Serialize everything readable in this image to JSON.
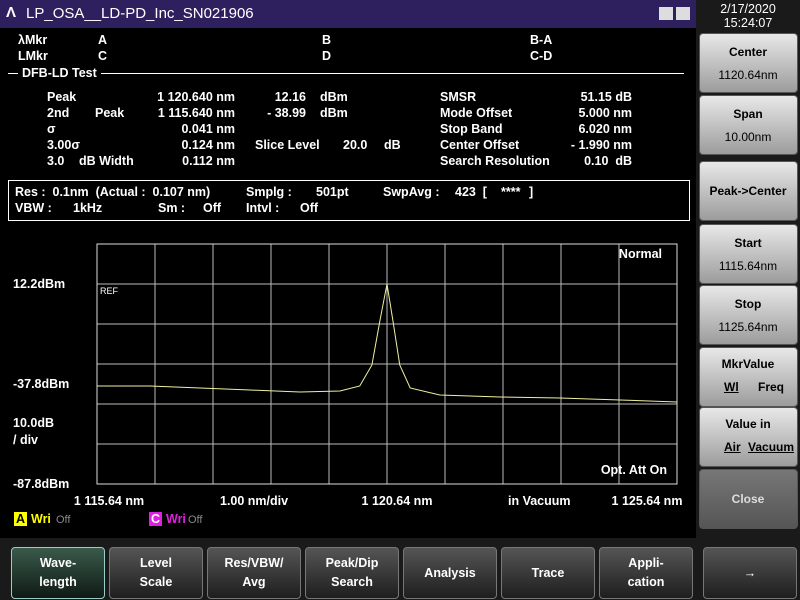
{
  "window": {
    "title": "LP_OSA__LD-PD_Inc_SN021906"
  },
  "clock": {
    "date": "2/17/2020",
    "time": "15:24:07"
  },
  "markers": {
    "rows": [
      [
        "λMkr",
        "A",
        "B",
        "B-A"
      ],
      [
        "LMkr",
        "C",
        "D",
        "C-D"
      ]
    ]
  },
  "test": {
    "title": "DFB-LD Test",
    "left": {
      "peak": [
        "Peak",
        "1 120.640 nm",
        "12.16",
        "dBm"
      ],
      "second": [
        "2nd",
        "Peak",
        "1 115.640 nm",
        "- 38.99",
        "dBm"
      ],
      "sigma": [
        "σ",
        "0.041 nm"
      ],
      "sigma3": [
        "3.00σ",
        "0.124 nm",
        "Slice Level",
        "20.0",
        "dB"
      ],
      "width": [
        "3.0",
        "dB Width",
        "0.112 nm"
      ]
    },
    "right": [
      [
        "SMSR",
        "51.15 dB"
      ],
      [
        "Mode Offset",
        "5.000 nm"
      ],
      [
        "Stop Band",
        "6.020 nm"
      ],
      [
        "Center Offset",
        "- 1.990 nm"
      ],
      [
        "Search Resolution",
        "0.10  dB"
      ]
    ]
  },
  "settings": {
    "row1": [
      "Res :  0.1nm  (Actual :  0.107 nm)",
      "Smplg :",
      "501pt",
      "SwpAvg :",
      "423  [",
      "****",
      "]"
    ],
    "row2": [
      "VBW :",
      "1kHz",
      "Sm :",
      "Off",
      "Intvl :",
      "Off"
    ]
  },
  "plot": {
    "type": "line",
    "mode": "Normal",
    "ref": "REF",
    "scale": [
      "10.0dB",
      "/ div"
    ],
    "att": "Opt. Att On",
    "div": "1.00 nm/div",
    "medium": "in Vacuum",
    "color": "#f0f0a0",
    "xlim": [
      1115.64,
      1125.64
    ],
    "ylim": [
      -87.8,
      12.2
    ],
    "xticks": [
      {
        "value": 1115.64,
        "label": "1 115.64 nm"
      },
      {
        "value": 1120.64,
        "label": "1 120.64 nm"
      },
      {
        "value": 1125.64,
        "label": "1 125.64 nm"
      }
    ],
    "yticks": [
      {
        "value": 12.2,
        "label": "12.2dBm"
      },
      {
        "value": -37.8,
        "label": "-37.8dBm"
      },
      {
        "value": -87.8,
        "label": "-87.8dBm"
      }
    ],
    "x": [
      1115.64,
      1116.55,
      1117.42,
      1118.28,
      1119.14,
      1119.83,
      1120.17,
      1120.38,
      1120.52,
      1120.64,
      1120.74,
      1120.86,
      1121.04,
      1121.55,
      1122.59,
      1123.62,
      1124.66,
      1125.64
    ],
    "values": [
      -38.8,
      -38.8,
      -39.8,
      -40.8,
      -41.8,
      -41.3,
      -38.8,
      -28.3,
      -5.8,
      12.16,
      -5.8,
      -28.3,
      -39.8,
      -43.3,
      -44.3,
      -44.8,
      -45.8,
      -46.8
    ]
  },
  "traces": [
    [
      "A",
      "Wri",
      "Off"
    ],
    [
      "C",
      "Wri",
      "Off"
    ]
  ],
  "side": [
    [
      "Center",
      "1120.64nm"
    ],
    [
      "Span",
      "10.00nm"
    ],
    [
      "Peak->Center"
    ],
    [
      "Start",
      "1115.64nm"
    ],
    [
      "Stop",
      "1125.64nm"
    ],
    [
      "MkrValue",
      "Wl",
      "Freq"
    ],
    [
      "Value in",
      "Air",
      "Vacuum"
    ],
    [
      "Close"
    ]
  ],
  "bottom": [
    [
      "Wave-",
      "length"
    ],
    [
      "Level",
      "Scale"
    ],
    [
      "Res/VBW/",
      "Avg"
    ],
    [
      "Peak/Dip",
      "Search"
    ],
    [
      "Analysis"
    ],
    [
      "Trace"
    ],
    [
      "Appli-",
      "cation"
    ]
  ]
}
